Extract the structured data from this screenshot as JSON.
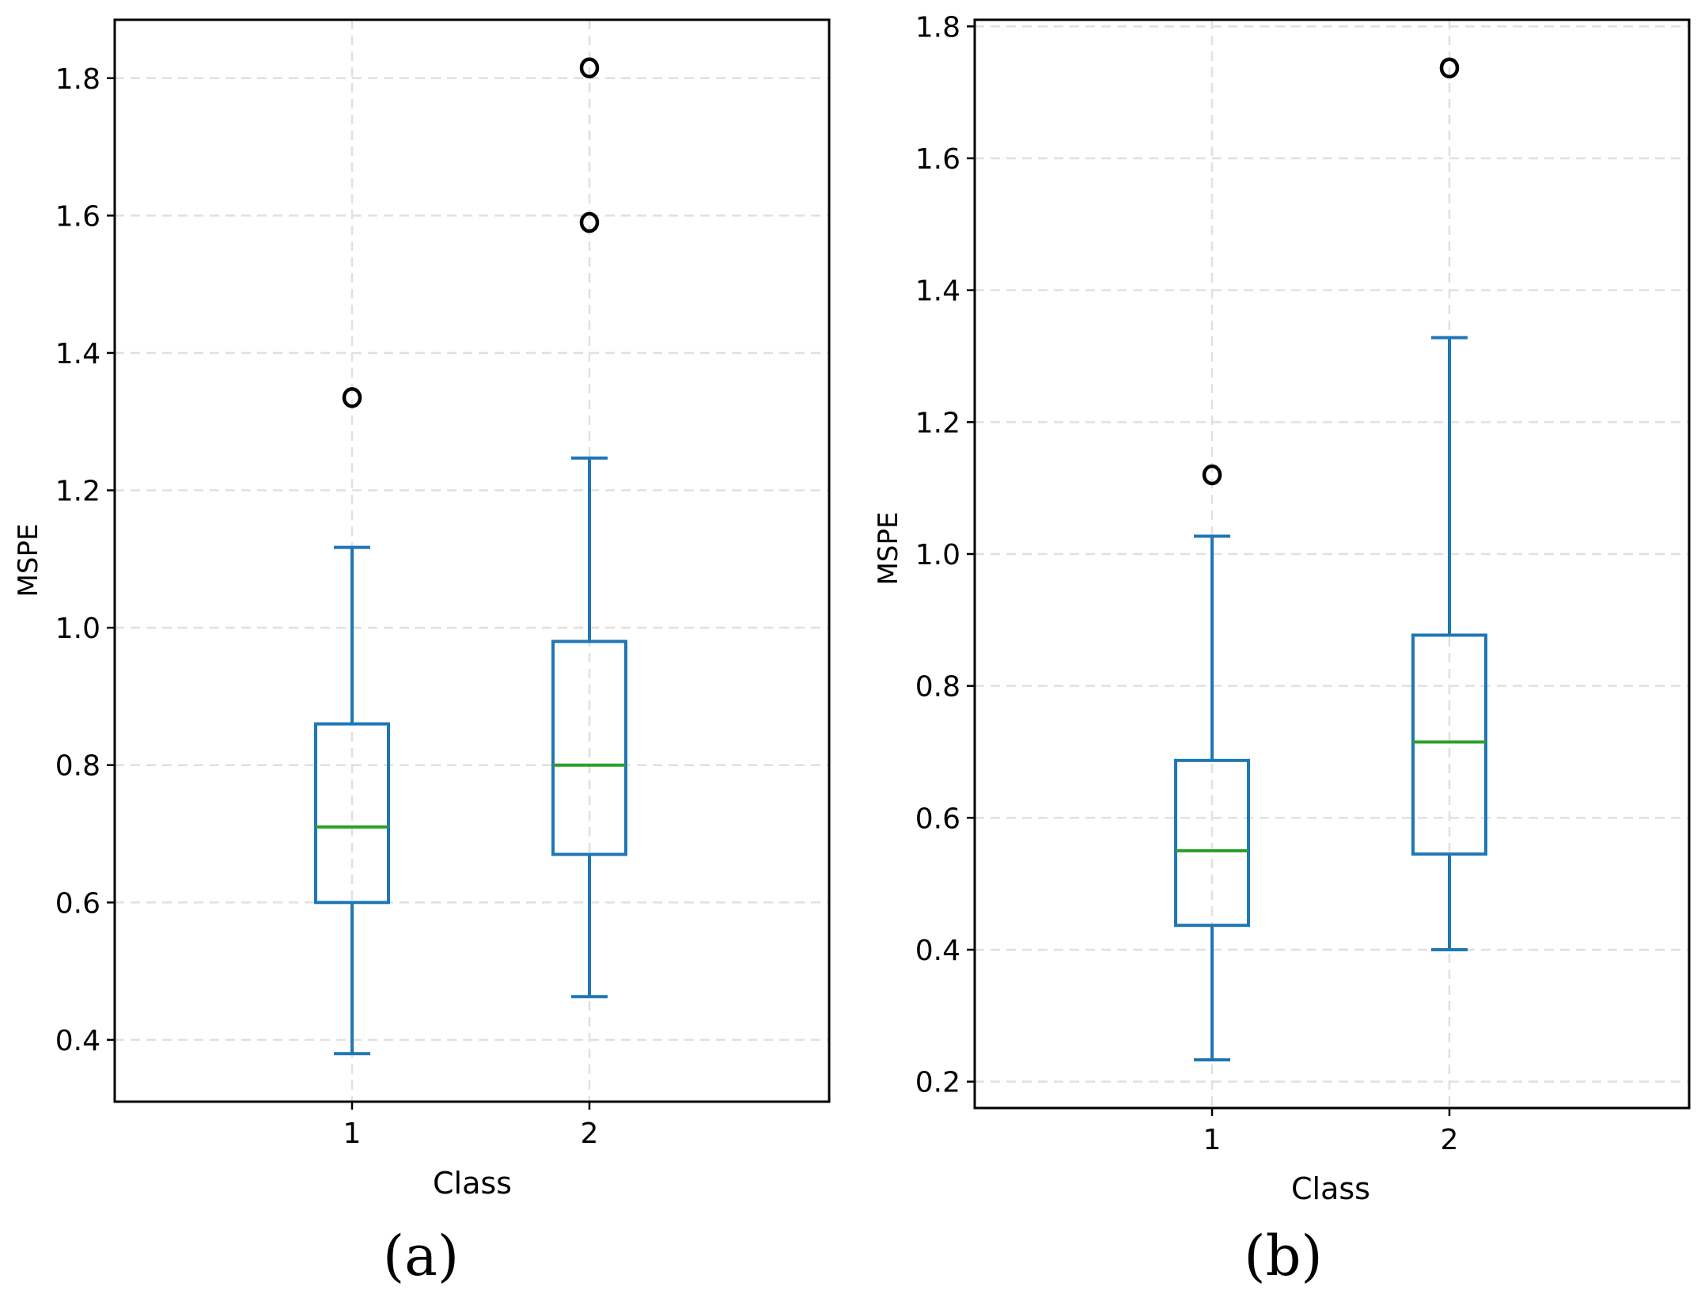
{
  "chart_data": [
    {
      "type": "box",
      "panel_label": "(a)",
      "xlabel": "Class",
      "ylabel": "MSPE",
      "ylim": [
        0.31,
        1.885
      ],
      "yticks": [
        0.4,
        0.6,
        0.8,
        1.0,
        1.2,
        1.4,
        1.6,
        1.8
      ],
      "ytick_labels": [
        "0.4",
        "0.6",
        "0.8",
        "1.0",
        "1.2",
        "1.4",
        "1.6",
        "1.8"
      ],
      "grid": true,
      "categories": [
        "1",
        "2"
      ],
      "boxes": [
        {
          "category": "1",
          "whisker_low": 0.38,
          "q1": 0.6,
          "median": 0.71,
          "q3": 0.86,
          "whisker_high": 1.117,
          "outliers": [
            1.335
          ]
        },
        {
          "category": "2",
          "whisker_low": 0.463,
          "q1": 0.67,
          "median": 0.8,
          "q3": 0.98,
          "whisker_high": 1.247,
          "outliers": [
            1.59,
            1.815
          ]
        }
      ],
      "colors": {
        "box": "#1f77b4",
        "median": "#2ca02c",
        "outlier": "#000000",
        "grid": "#e0e0e0"
      }
    },
    {
      "type": "box",
      "panel_label": "(b)",
      "xlabel": "Class",
      "ylabel": "MSPE",
      "ylim": [
        0.16,
        1.81
      ],
      "yticks": [
        0.2,
        0.4,
        0.6,
        0.8,
        1.0,
        1.2,
        1.4,
        1.6,
        1.8
      ],
      "ytick_labels": [
        "0.2",
        "0.4",
        "0.6",
        "0.8",
        "1.0",
        "1.2",
        "1.4",
        "1.6",
        "1.8"
      ],
      "grid": true,
      "categories": [
        "1",
        "2"
      ],
      "boxes": [
        {
          "category": "1",
          "whisker_low": 0.233,
          "q1": 0.437,
          "median": 0.55,
          "q3": 0.687,
          "whisker_high": 1.027,
          "outliers": [
            1.12
          ]
        },
        {
          "category": "2",
          "whisker_low": 0.4,
          "q1": 0.545,
          "median": 0.715,
          "q3": 0.877,
          "whisker_high": 1.328,
          "outliers": [
            1.737
          ]
        }
      ],
      "colors": {
        "box": "#1f77b4",
        "median": "#2ca02c",
        "outlier": "#000000",
        "grid": "#e0e0e0"
      }
    }
  ]
}
